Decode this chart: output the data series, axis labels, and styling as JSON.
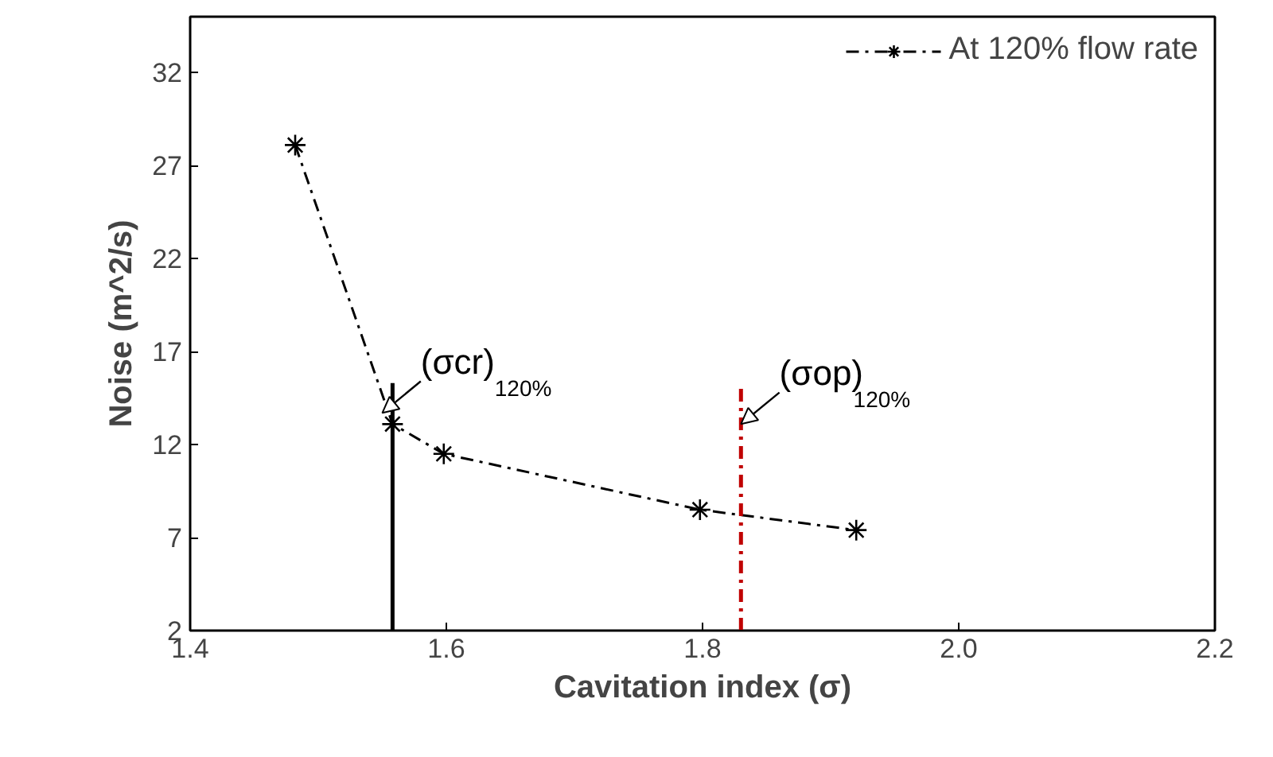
{
  "chart_data": {
    "type": "line",
    "xlabel": "Cavitation index (σ)",
    "ylabel": "Noise (m^2/s)",
    "xlim": [
      1.4,
      2.2
    ],
    "xticks": [
      {
        "value": 1.4,
        "label": "1.4"
      },
      {
        "value": 1.6,
        "label": "1.6"
      },
      {
        "value": 1.8,
        "label": "1.8"
      },
      {
        "value": 2.0,
        "label": "2.0"
      },
      {
        "value": 2.2,
        "label": "2.2"
      }
    ],
    "ylim": [
      2,
      35
    ],
    "yticks": [
      2,
      7,
      12,
      17,
      22,
      27,
      32
    ],
    "series": [
      {
        "name": "At 120% flow rate",
        "color": "#000000",
        "x": [
          1.482,
          1.558,
          1.598,
          1.798,
          1.92
        ],
        "values": [
          28.1,
          13.1,
          11.5,
          8.5,
          7.4
        ],
        "marker": "cross",
        "line_style": "dashed"
      },
      {
        "type": "line",
        "color": "#000000",
        "x": [
          1.558,
          1.558
        ],
        "values": [
          2,
          15.3
        ],
        "marker": "none",
        "line_style": "solid"
      },
      {
        "type": "line",
        "color": "#c00000",
        "x": [
          1.83,
          1.83
        ],
        "values": [
          2,
          15.3
        ],
        "marker": "none",
        "line_style": "dashed"
      }
    ],
    "annotations": [
      {
        "text": "(σcr)$_{120%}$",
        "x": 1.55,
        "y": 13.7
      },
      {
        "text": "(σop)$_{120%}$",
        "x": 1.83,
        "y": 13.1
      }
    ],
    "legend": "top right",
    "grid": false
  }
}
